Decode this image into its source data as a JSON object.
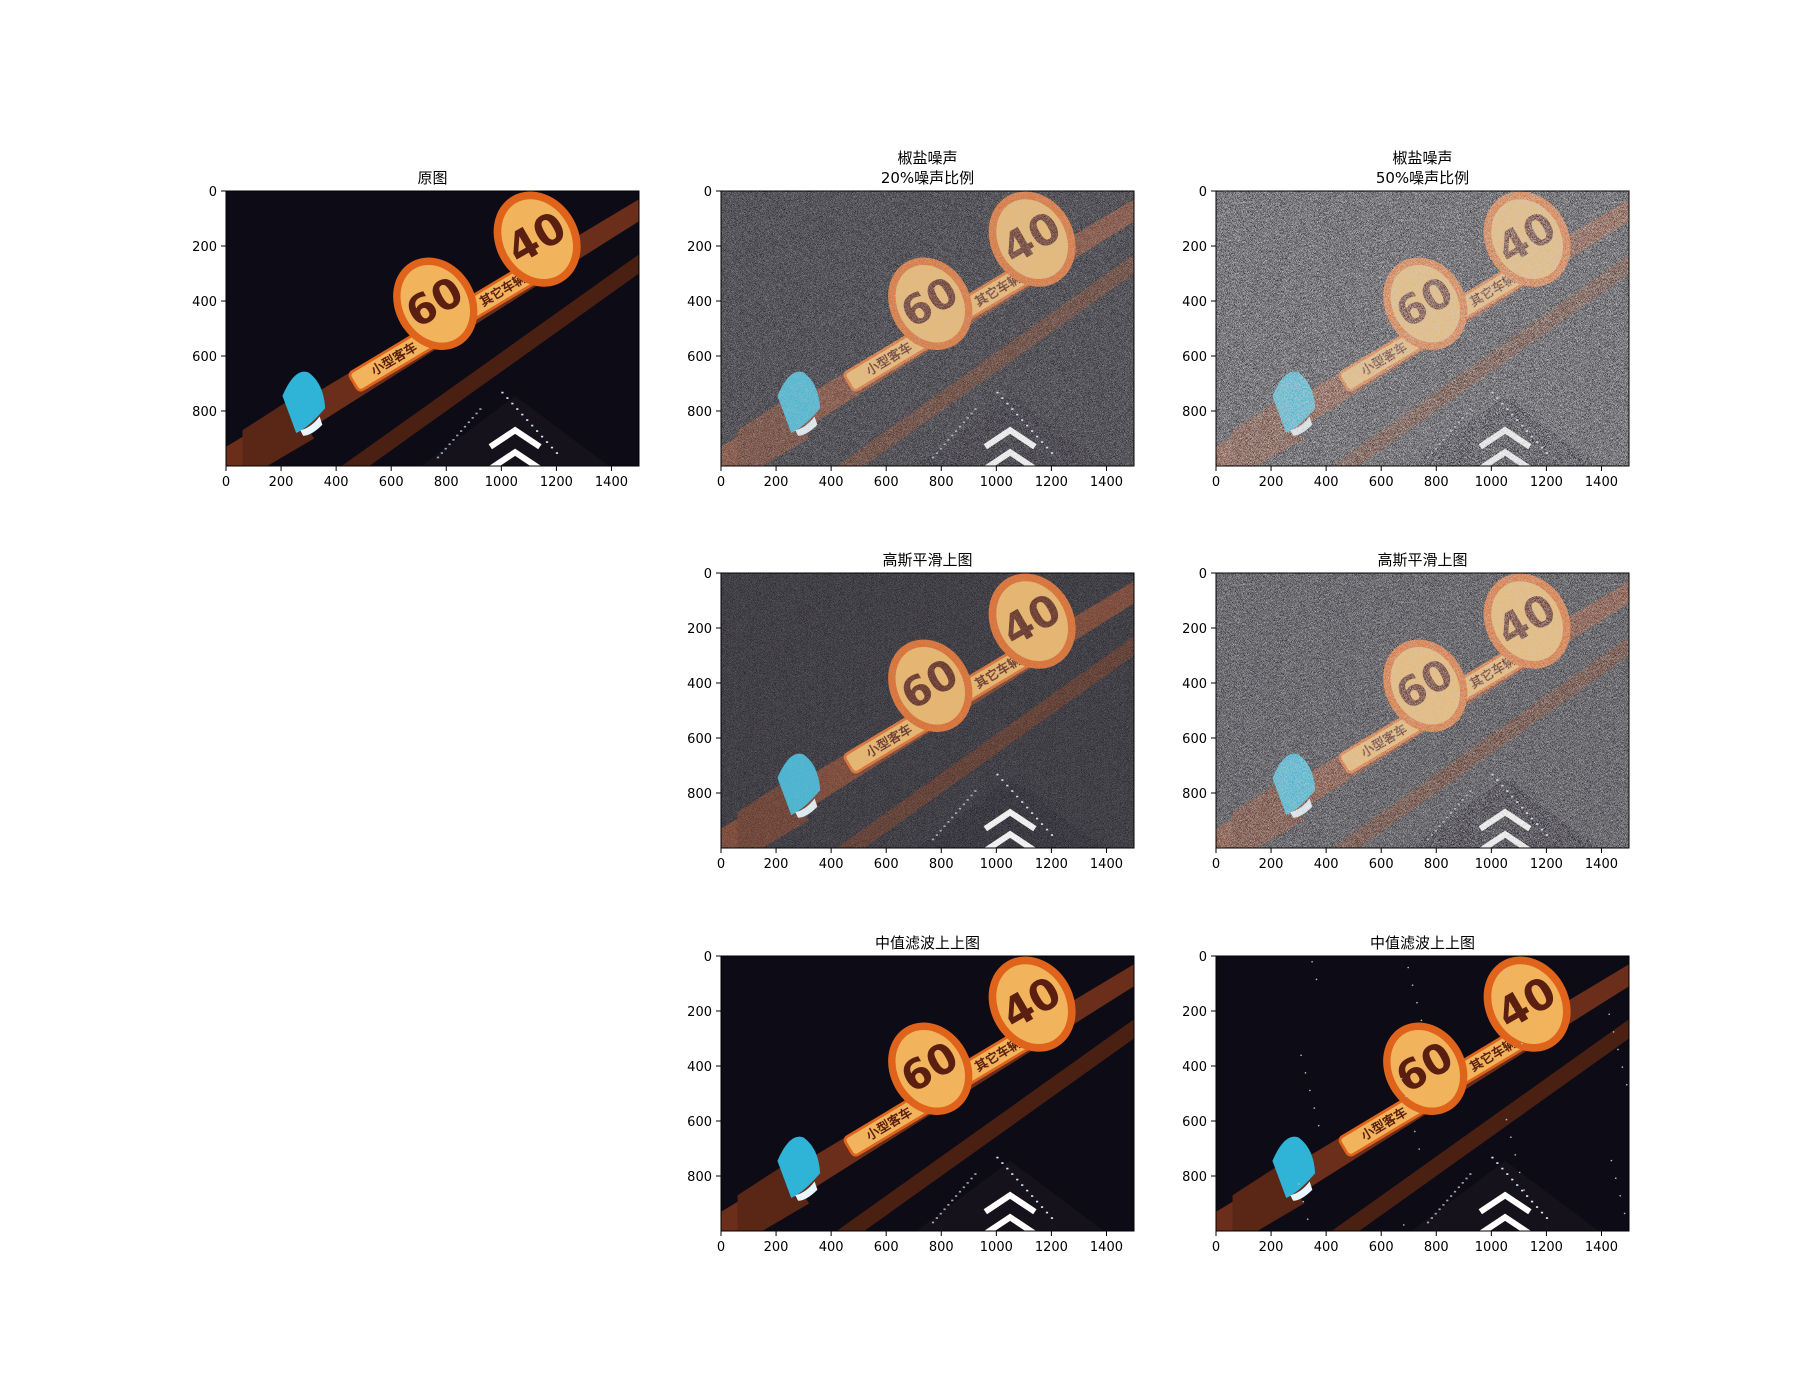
{
  "chart_data": [
    {
      "type": "image",
      "title": "原图",
      "variant": "original",
      "xticks": [
        0,
        200,
        400,
        600,
        800,
        1000,
        1200,
        1400
      ],
      "yticks": [
        0,
        200,
        400,
        600,
        800
      ],
      "xlim": [
        0,
        1500
      ],
      "ylim": [
        1000,
        0
      ]
    },
    {
      "type": "image",
      "title": "椒盐噪声\n20%噪声比例",
      "variant": "noise20",
      "xticks": [
        0,
        200,
        400,
        600,
        800,
        1000,
        1200,
        1400
      ],
      "yticks": [
        0,
        200,
        400,
        600,
        800
      ],
      "xlim": [
        0,
        1500
      ],
      "ylim": [
        1000,
        0
      ]
    },
    {
      "type": "image",
      "title": "椒盐噪声\n50%噪声比例",
      "variant": "noise50",
      "xticks": [
        0,
        200,
        400,
        600,
        800,
        1000,
        1200,
        1400
      ],
      "yticks": [
        0,
        200,
        400,
        600,
        800
      ],
      "xlim": [
        0,
        1500
      ],
      "ylim": [
        1000,
        0
      ]
    },
    {
      "type": "image",
      "title": "高斯平滑上图",
      "variant": "gauss20",
      "xticks": [
        0,
        200,
        400,
        600,
        800,
        1000,
        1200,
        1400
      ],
      "yticks": [
        0,
        200,
        400,
        600,
        800
      ],
      "xlim": [
        0,
        1500
      ],
      "ylim": [
        1000,
        0
      ]
    },
    {
      "type": "image",
      "title": "高斯平滑上图",
      "variant": "gauss50",
      "xticks": [
        0,
        200,
        400,
        600,
        800,
        1000,
        1200,
        1400
      ],
      "yticks": [
        0,
        200,
        400,
        600,
        800
      ],
      "xlim": [
        0,
        1500
      ],
      "ylim": [
        1000,
        0
      ]
    },
    {
      "type": "image",
      "title": "中值滤波上上图",
      "variant": "median20",
      "xticks": [
        0,
        200,
        400,
        600,
        800,
        1000,
        1200,
        1400
      ],
      "yticks": [
        0,
        200,
        400,
        600,
        800
      ],
      "xlim": [
        0,
        1500
      ],
      "ylim": [
        1000,
        0
      ]
    },
    {
      "type": "image",
      "title": "中值滤波上上图",
      "variant": "median50",
      "xticks": [
        0,
        200,
        400,
        600,
        800,
        1000,
        1200,
        1400
      ],
      "yticks": [
        0,
        200,
        400,
        600,
        800
      ],
      "xlim": [
        0,
        1500
      ],
      "ylim": [
        1000,
        0
      ]
    }
  ],
  "scene": {
    "sign_left_text": "60",
    "sign_right_text": "40",
    "plate_left_text": "小型客车",
    "plate_right_text": "其它车辆"
  },
  "colors": {
    "sky": "#0d0b15",
    "beam": "#6b2e1a",
    "sign_ring": "#e0631c",
    "sign_fill": "#f1b45c",
    "sign_text": "#5a1f10",
    "light": "#2fb3d6",
    "building": "#ffffff"
  }
}
